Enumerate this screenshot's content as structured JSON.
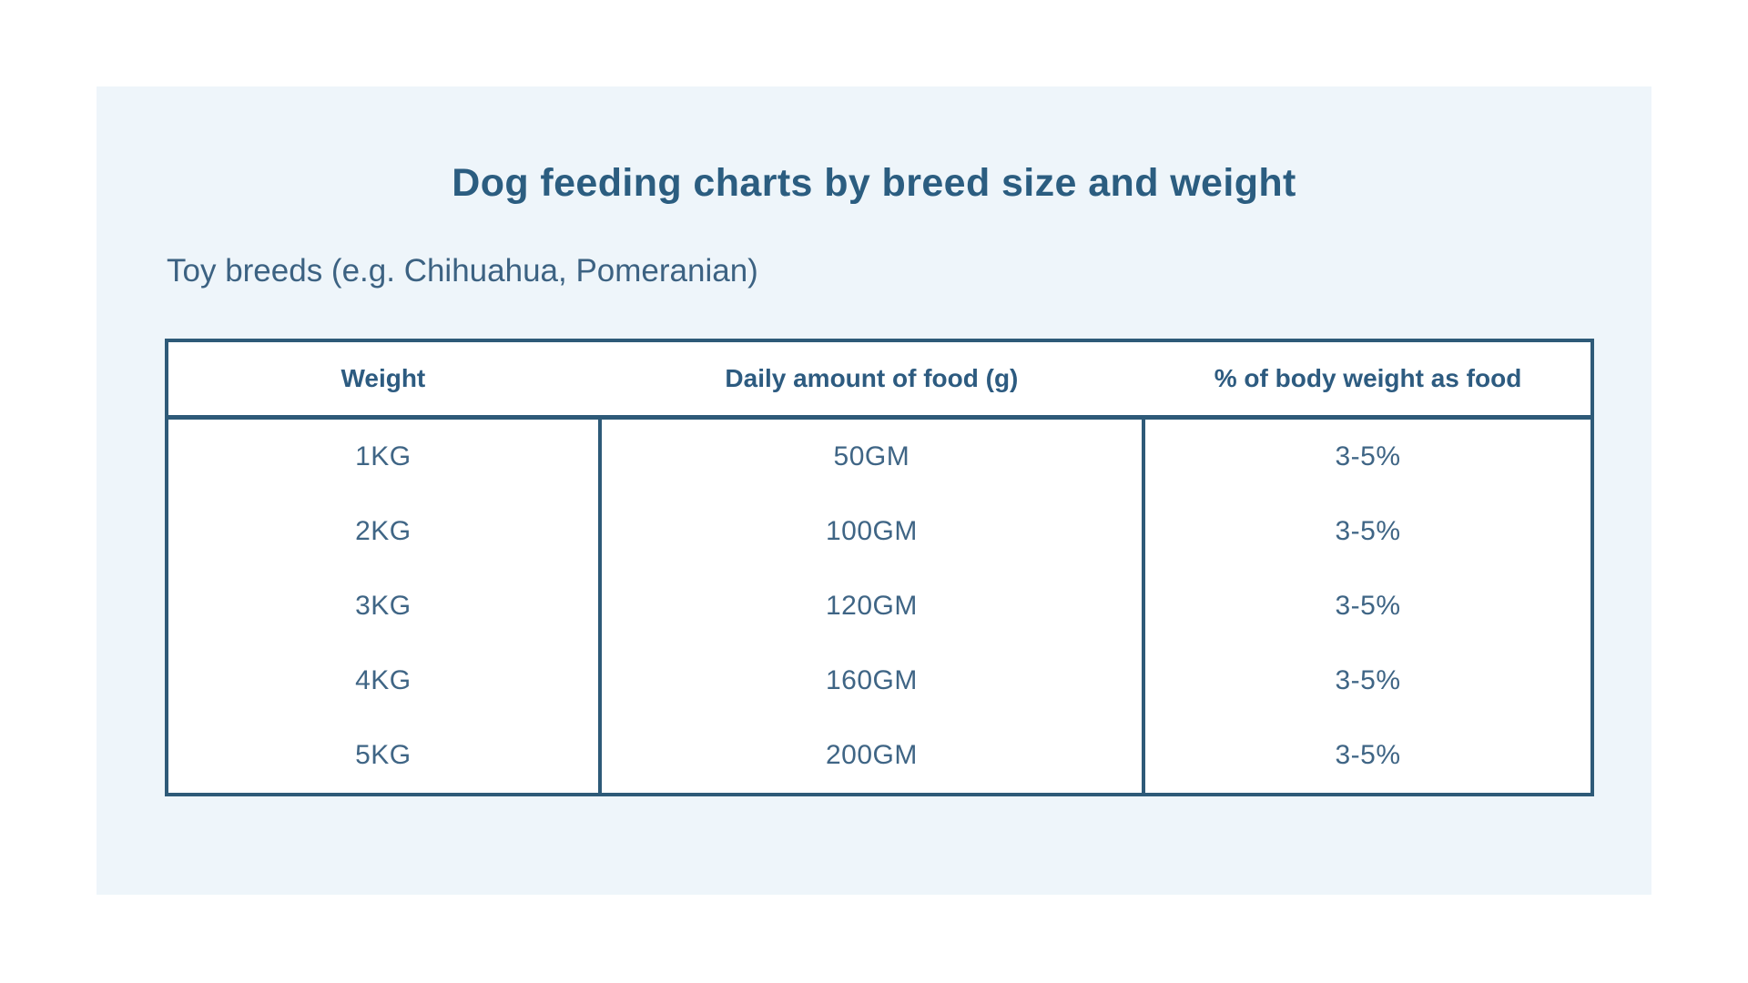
{
  "colors": {
    "page_background": "#ffffff",
    "card_background": "#eef5fa",
    "table_border": "#2e5a78",
    "title_text": "#2b5d80",
    "body_text": "#3f6585"
  },
  "header": {
    "title": "Dog feeding charts by breed size and weight",
    "subtitle": "Toy breeds (e.g. Chihuahua, Pomeranian)"
  },
  "chart_data": {
    "type": "table",
    "title": "Dog feeding charts by breed size and weight",
    "subtitle": "Toy breeds (e.g. Chihuahua, Pomeranian)",
    "columns": [
      "Weight",
      "Daily amount of food (g)",
      "% of body weight as food"
    ],
    "rows": [
      [
        "1KG",
        "50GM",
        "3-5%"
      ],
      [
        "2KG",
        "100GM",
        "3-5%"
      ],
      [
        "3KG",
        "120GM",
        "3-5%"
      ],
      [
        "4KG",
        "160GM",
        "3-5%"
      ],
      [
        "5KG",
        "200GM",
        "3-5%"
      ]
    ]
  }
}
